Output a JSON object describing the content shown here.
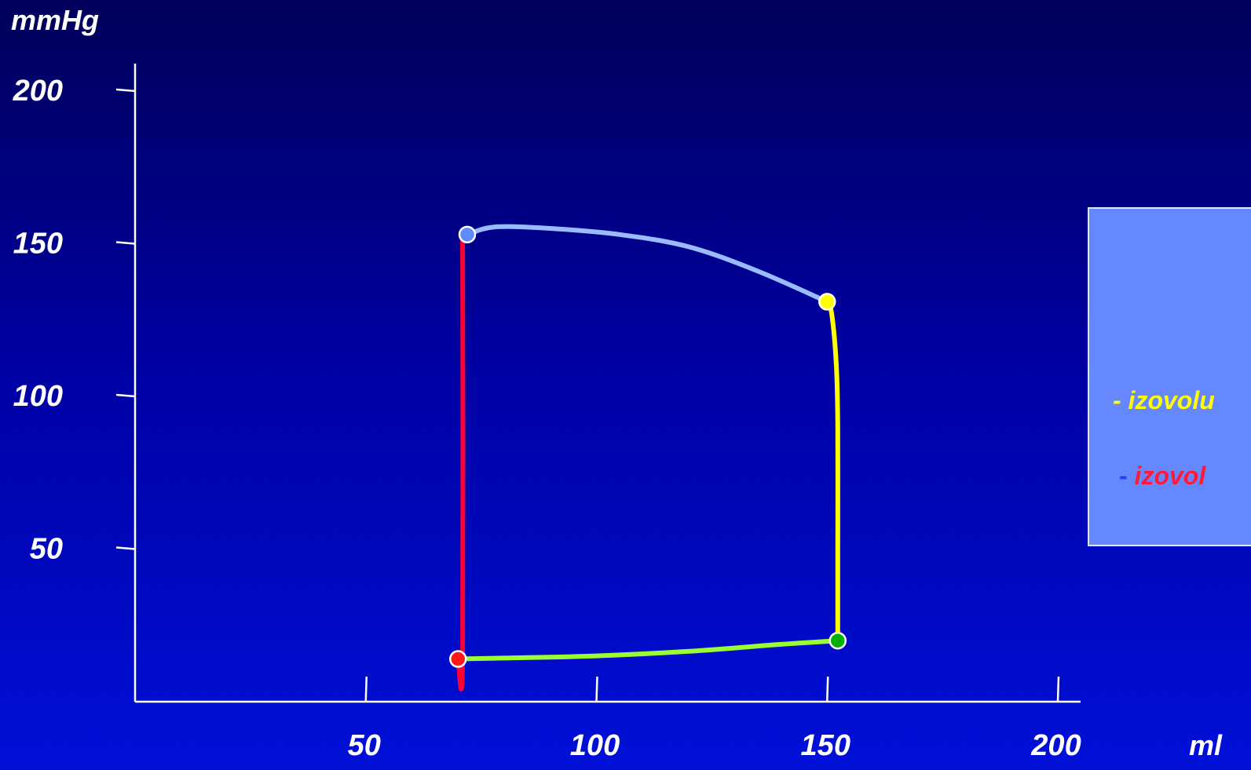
{
  "chart_data": {
    "type": "line",
    "xlabel": "ml",
    "ylabel": "mmHg",
    "xlim": [
      0,
      208
    ],
    "ylim": [
      0,
      215
    ],
    "x_ticks": [
      50,
      100,
      150,
      200
    ],
    "y_ticks": [
      50,
      100,
      150,
      200
    ],
    "grid": false,
    "series": [
      {
        "color": "#99bbff",
        "points": [
          [
            72,
            153
          ],
          [
            78,
            155.5
          ],
          [
            90,
            155
          ],
          [
            105,
            153
          ],
          [
            120,
            149
          ],
          [
            135,
            141
          ],
          [
            150,
            131
          ]
        ]
      },
      {
        "color": "#ffff00",
        "points": [
          [
            150,
            131
          ],
          [
            151,
            127
          ],
          [
            152,
            110
          ],
          [
            152.3,
            90
          ],
          [
            152.3,
            50
          ],
          [
            152.3,
            20
          ]
        ]
      },
      {
        "color": "#99ff33",
        "points": [
          [
            152.3,
            20
          ],
          [
            140,
            18.8
          ],
          [
            120,
            16.5
          ],
          [
            100,
            15
          ],
          [
            80,
            14.3
          ],
          [
            70,
            14
          ]
        ]
      },
      {
        "color": "#ff0033",
        "points": [
          [
            70,
            14
          ],
          [
            71,
            14.5
          ],
          [
            71,
            152.5
          ]
        ]
      }
    ],
    "markers": [
      {
        "x": 72,
        "y": 153,
        "color": "#5c8cff"
      },
      {
        "x": 150,
        "y": 131,
        "color": "#ffff00"
      },
      {
        "x": 152.3,
        "y": 20,
        "color": "#00b000"
      },
      {
        "x": 70,
        "y": 14,
        "color": "#ff1a1a"
      }
    ]
  },
  "legend": {
    "line1": "- izovolu",
    "line2_dash": "-",
    "line2_text": "izovol"
  }
}
